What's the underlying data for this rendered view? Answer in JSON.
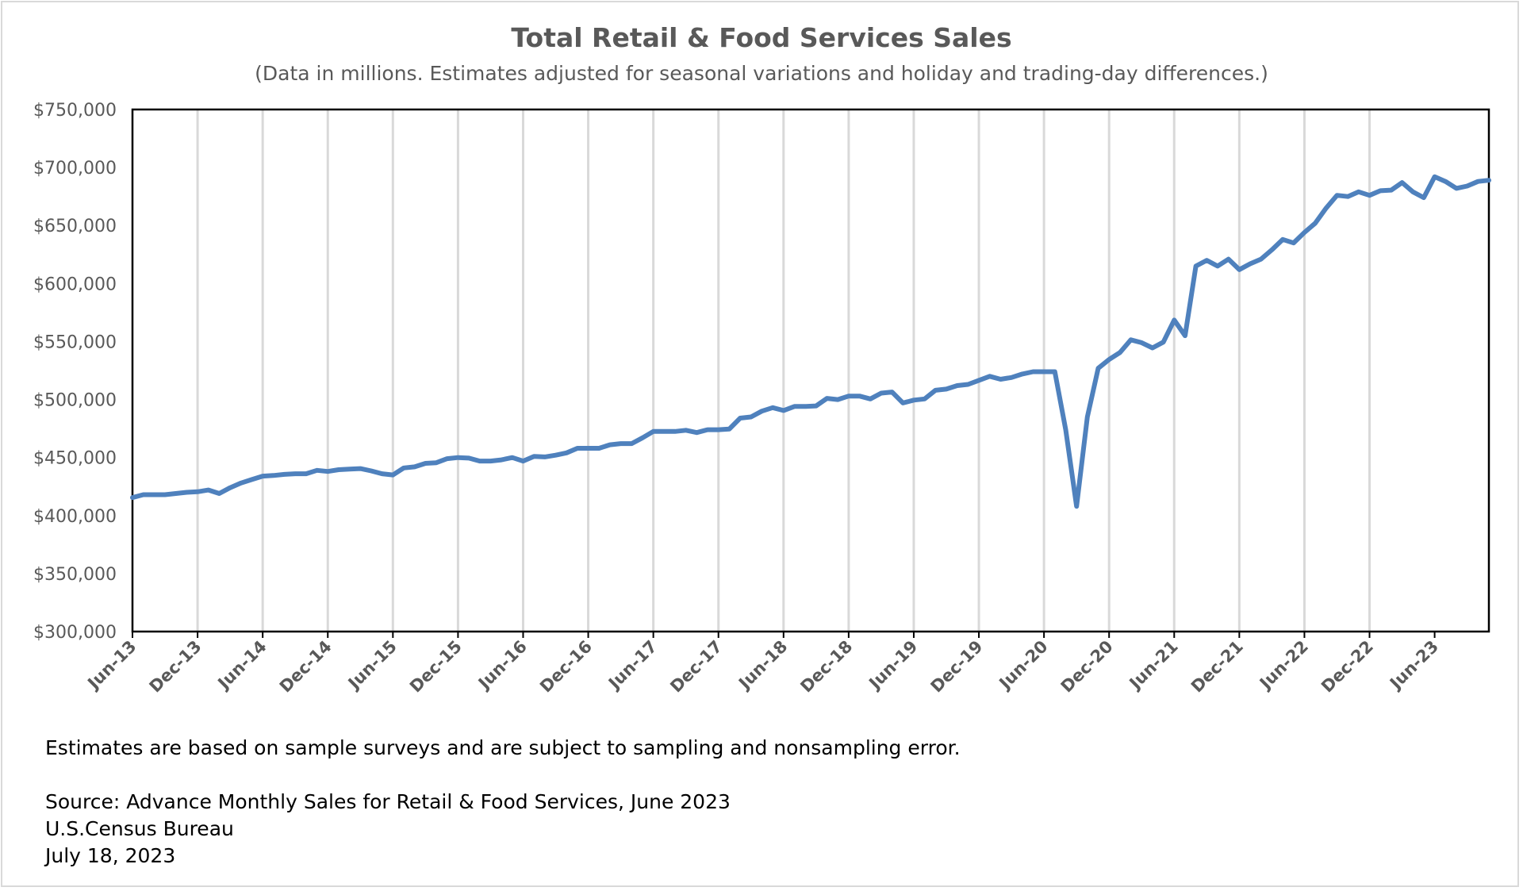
{
  "chart_data": {
    "type": "line",
    "title": "Total Retail & Food Services Sales",
    "subtitle": "(Data in millions. Estimates adjusted for seasonal variations and holiday and trading-day differences.)",
    "xlabel": "",
    "ylabel": "",
    "ylim": [
      300000,
      750000
    ],
    "yticks": [
      "$300,000",
      "$350,000",
      "$400,000",
      "$450,000",
      "$500,000",
      "$550,000",
      "$600,000",
      "$650,000",
      "$700,000",
      "$750,000"
    ],
    "xtick_labels": [
      "Jun-13",
      "Dec-13",
      "Jun-14",
      "Dec-14",
      "Jun-15",
      "Dec-15",
      "Jun-16",
      "Dec-16",
      "Jun-17",
      "Dec-17",
      "Jun-18",
      "Dec-18",
      "Jun-19",
      "Dec-19",
      "Jun-20",
      "Dec-20",
      "Jun-21",
      "Dec-21",
      "Jun-22",
      "Dec-22",
      "Jun-23"
    ],
    "grid": "vertical",
    "legend": "none",
    "color": "#4f81bd",
    "start_month": "Jun-13",
    "values": [
      415500,
      418000,
      418000,
      418000,
      419000,
      420000,
      420500,
      422000,
      419000,
      424000,
      428000,
      431000,
      434000,
      434500,
      435500,
      436000,
      436000,
      439000,
      438000,
      439500,
      440000,
      440500,
      438500,
      436000,
      435000,
      441000,
      442000,
      445000,
      445500,
      449000,
      450000,
      449500,
      447000,
      447000,
      448000,
      450000,
      447000,
      451000,
      450500,
      452000,
      454000,
      458000,
      458000,
      458000,
      461000,
      462000,
      462000,
      467000,
      472500,
      472500,
      472500,
      473500,
      471500,
      474000,
      474000,
      474500,
      484000,
      485000,
      490000,
      493000,
      490500,
      494000,
      494000,
      494500,
      501000,
      500000,
      503000,
      503000,
      500500,
      505500,
      506500,
      497000,
      499500,
      500500,
      508000,
      509000,
      512000,
      513000,
      516500,
      520000,
      517500,
      519000,
      522000,
      524000,
      524000,
      524000,
      474000,
      408000,
      485000,
      527000,
      534500,
      540500,
      551500,
      549000,
      544500,
      549500,
      568500,
      555000,
      615000,
      620000,
      615000,
      621000,
      612000,
      617000,
      621000,
      629000,
      638000,
      635000,
      644000,
      652000,
      665000,
      676000,
      675000,
      679000,
      676000,
      680000,
      680500,
      687000,
      679000,
      674000,
      692000,
      688000,
      682000,
      684000,
      688000,
      689000
    ]
  },
  "notes": {
    "disclaimer": "Estimates are based on sample surveys and are subject to sampling and nonsampling error.",
    "source": "Source: Advance Monthly Sales for Retail & Food Services, June 2023",
    "agency": "U.S.Census Bureau",
    "date": "July 18, 2023"
  }
}
